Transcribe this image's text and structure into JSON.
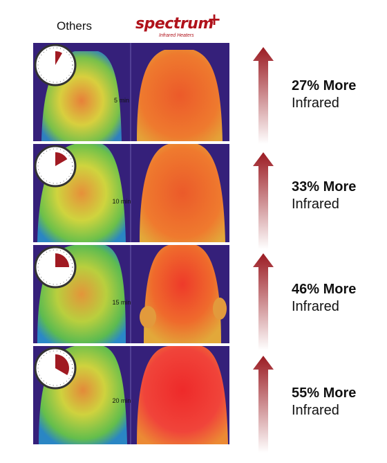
{
  "header": {
    "left_label": "Others",
    "logo_word": "spectrum",
    "logo_plus": "+",
    "logo_subtitle": "Infrared Heaters"
  },
  "rows": [
    {
      "timer": "5 min",
      "elapsed_fraction": 0.083,
      "percent_label": "27% More",
      "sub_label": "Infrared"
    },
    {
      "timer": "10 min",
      "elapsed_fraction": 0.167,
      "percent_label": "33% More",
      "sub_label": "Infrared"
    },
    {
      "timer": "15 min",
      "elapsed_fraction": 0.25,
      "percent_label": "46% More",
      "sub_label": "Infrared"
    },
    {
      "timer": "20 min",
      "elapsed_fraction": 0.333,
      "percent_label": "55% More",
      "sub_label": "Infrared"
    }
  ],
  "colors": {
    "brand_red": "#b0121b",
    "arrow_dark": "#9b1b22",
    "thermal_bg": "#35207a",
    "others_body": "#d4c23a",
    "spectrum_body": "#e8622a"
  }
}
